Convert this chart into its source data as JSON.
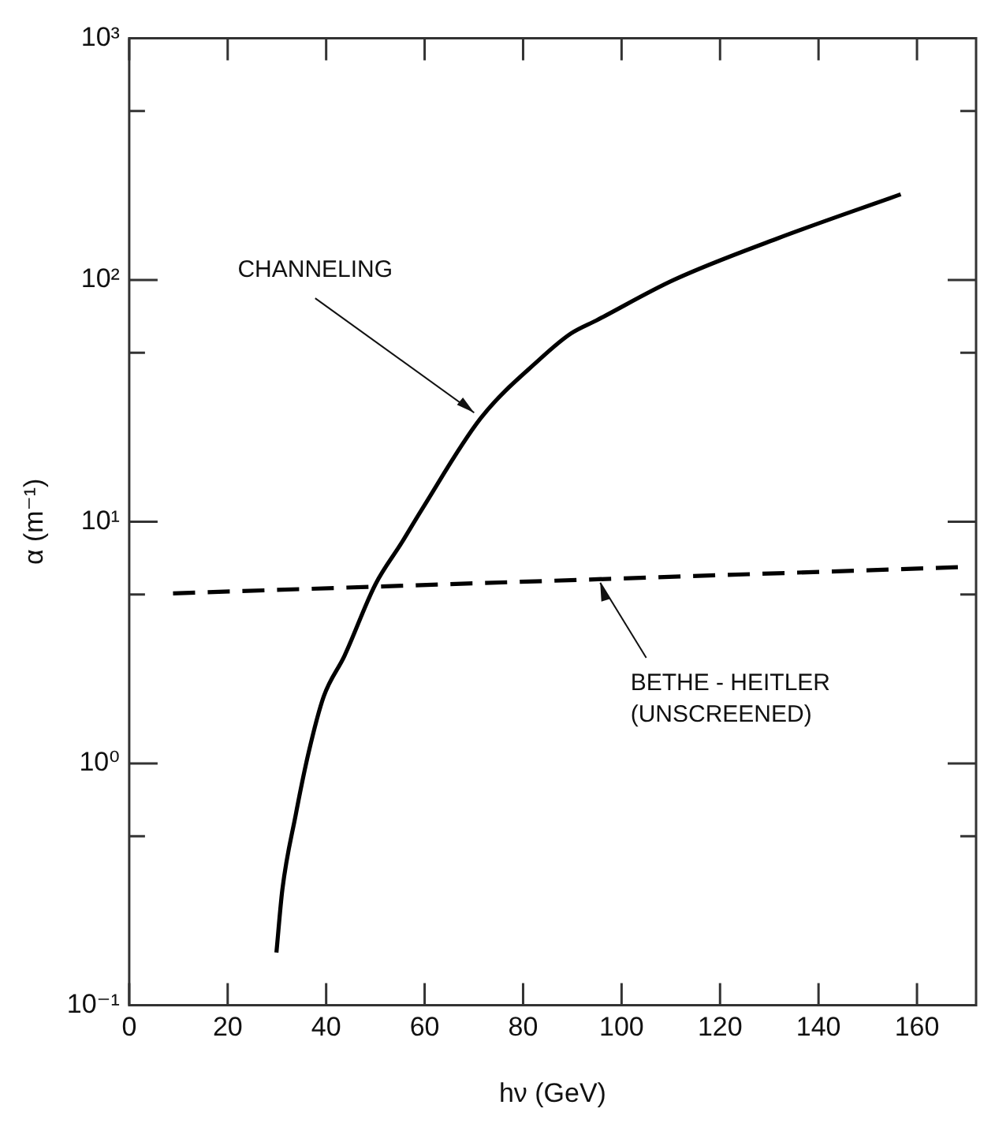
{
  "chart_data": {
    "type": "line",
    "xlabel": "hν (GeV)",
    "ylabel": "α (m⁻¹)",
    "xlim": [
      0,
      172
    ],
    "xticks": [
      0,
      20,
      40,
      60,
      80,
      100,
      120,
      140,
      160
    ],
    "ylim": [
      0.1,
      1000
    ],
    "yticks": [
      {
        "value": 0.1,
        "label": "10⁻¹"
      },
      {
        "value": 0.5,
        "label": null
      },
      {
        "value": 1,
        "label": "10⁰"
      },
      {
        "value": 5,
        "label": null
      },
      {
        "value": 10,
        "label": "10¹"
      },
      {
        "value": 50,
        "label": null
      },
      {
        "value": 100,
        "label": "10²"
      },
      {
        "value": 500,
        "label": null
      },
      {
        "value": 1000,
        "label": "10³"
      }
    ],
    "log": "y",
    "grid": false,
    "legend": false,
    "marker": "none",
    "series": [
      {
        "color": "#000000",
        "line_style": "solid",
        "x": [
          29.9,
          31.1,
          33.8,
          36.4,
          39.5,
          43.7,
          50,
          55.2,
          59.4,
          71.4,
          83.4,
          89.7,
          94.9,
          110.6,
          131.5,
          156.7
        ],
        "values": [
          0.165,
          0.3,
          0.61,
          1.1,
          1.89,
          2.78,
          5.5,
          8.1,
          11.2,
          26.8,
          47,
          60,
          68,
          100,
          148,
          226
        ]
      },
      {
        "color": "#000000",
        "line_style": "dashed",
        "x": [
          8.9,
          170.6
        ],
        "values": [
          5.05,
          6.5
        ]
      }
    ],
    "annotations": [
      {
        "text": "CHANNELING",
        "x": 71.4,
        "y": 26.8
      },
      {
        "text": "BETHE - HEITLER\n(UNSCREENED)",
        "x": 95.4,
        "y": 5.8
      }
    ]
  }
}
